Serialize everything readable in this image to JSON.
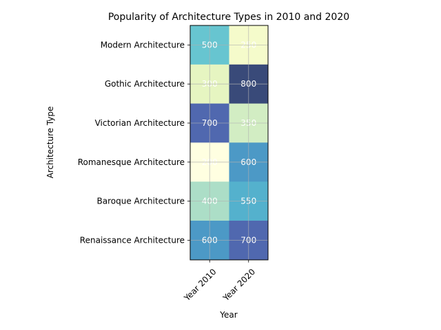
{
  "chart_data": {
    "type": "heatmap",
    "title": "Popularity of Architecture Types in 2010 and 2020",
    "xlabel": "Year",
    "ylabel": "Architecture Type",
    "x_categories": [
      "Year 2010",
      "Year 2020"
    ],
    "y_categories": [
      "Modern Architecture",
      "Gothic Architecture",
      "Victorian Architecture",
      "Romanesque Architecture",
      "Baroque Architecture",
      "Renaissance Architecture"
    ],
    "values": [
      [
        500,
        250
      ],
      [
        300,
        800
      ],
      [
        700,
        350
      ],
      [
        200,
        600
      ],
      [
        400,
        550
      ],
      [
        600,
        700
      ]
    ],
    "colormap": "YlGnBu",
    "value_range": [
      200,
      800
    ],
    "grid": true,
    "legend": "none"
  }
}
